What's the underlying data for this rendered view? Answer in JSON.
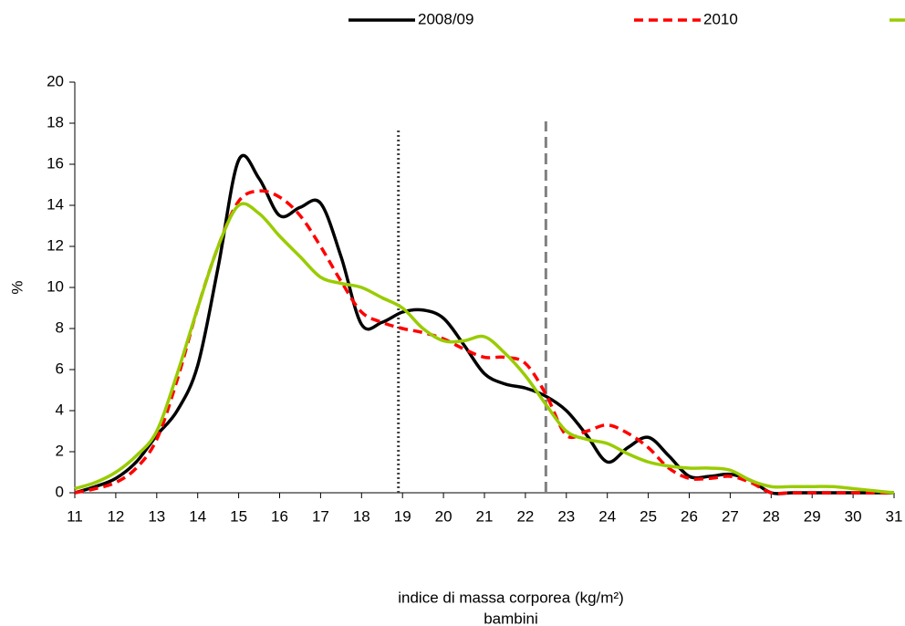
{
  "chart_data": {
    "type": "line",
    "x_label": "indice di massa corporea (kg/m²)",
    "subtitle": "bambini",
    "y_label": "%",
    "x": [
      11,
      11.5,
      12,
      12.5,
      13,
      13.5,
      14,
      14.5,
      15,
      15.5,
      16,
      16.5,
      17,
      17.5,
      18,
      18.5,
      19,
      19.5,
      20,
      20.5,
      21,
      21.5,
      22,
      22.5,
      23,
      23.5,
      24,
      24.5,
      25,
      25.5,
      26,
      26.5,
      27,
      27.5,
      28,
      28.5,
      29,
      29.5,
      30,
      30.5,
      31
    ],
    "series": [
      {
        "name": "2008/09",
        "color": "#000000",
        "dash": "solid",
        "values": [
          0,
          0.3,
          0.7,
          1.5,
          2.8,
          4,
          6.2,
          11,
          16.2,
          15.3,
          13.5,
          13.9,
          14.1,
          11.5,
          8.2,
          8.3,
          8.8,
          8.9,
          8.5,
          7.2,
          5.8,
          5.3,
          5.1,
          4.7,
          4,
          2.8,
          1.5,
          2.2,
          2.7,
          1.8,
          0.8,
          0.8,
          0.9,
          0.6,
          0,
          0,
          0,
          0,
          0,
          0,
          0
        ]
      },
      {
        "name": "2010",
        "color": "#ff0000",
        "dash": "dashed",
        "values": [
          0,
          0.2,
          0.5,
          1.2,
          2.6,
          5.5,
          9,
          12,
          14.2,
          14.7,
          14.4,
          13.5,
          12,
          10.3,
          8.8,
          8.3,
          8,
          7.8,
          7.5,
          7,
          6.6,
          6.6,
          6.3,
          4.8,
          2.8,
          3,
          3.3,
          2.9,
          2.2,
          1.2,
          0.7,
          0.7,
          0.8,
          0.5,
          0,
          0,
          0,
          0,
          0,
          0,
          0
        ]
      },
      {
        "name": null,
        "color": "#99cc00",
        "dash": "solid",
        "values": [
          0.2,
          0.5,
          1,
          1.8,
          3,
          5.8,
          9,
          12,
          14,
          13.6,
          12.5,
          11.5,
          10.5,
          10.2,
          10,
          9.5,
          9,
          8,
          7.4,
          7.4,
          7.6,
          6.8,
          5.7,
          4.3,
          3,
          2.6,
          2.4,
          1.9,
          1.5,
          1.3,
          1.2,
          1.2,
          1.1,
          0.6,
          0.3,
          0.3,
          0.3,
          0.3,
          0.2,
          0.1,
          0
        ]
      }
    ],
    "reference_lines": [
      {
        "x": 18.9,
        "style": "dotted",
        "color": "#404040"
      },
      {
        "x": 22.5,
        "style": "dashed",
        "color": "#808080"
      }
    ],
    "xlim": [
      11,
      31
    ],
    "xticks": [
      11,
      12,
      13,
      14,
      15,
      16,
      17,
      18,
      19,
      20,
      21,
      22,
      23,
      24,
      25,
      26,
      27,
      28,
      29,
      30,
      31
    ],
    "ylim": [
      0,
      20
    ],
    "yticks": [
      0,
      2,
      4,
      6,
      8,
      10,
      12,
      14,
      16,
      18,
      20
    ],
    "grid": false,
    "legend": "top"
  }
}
